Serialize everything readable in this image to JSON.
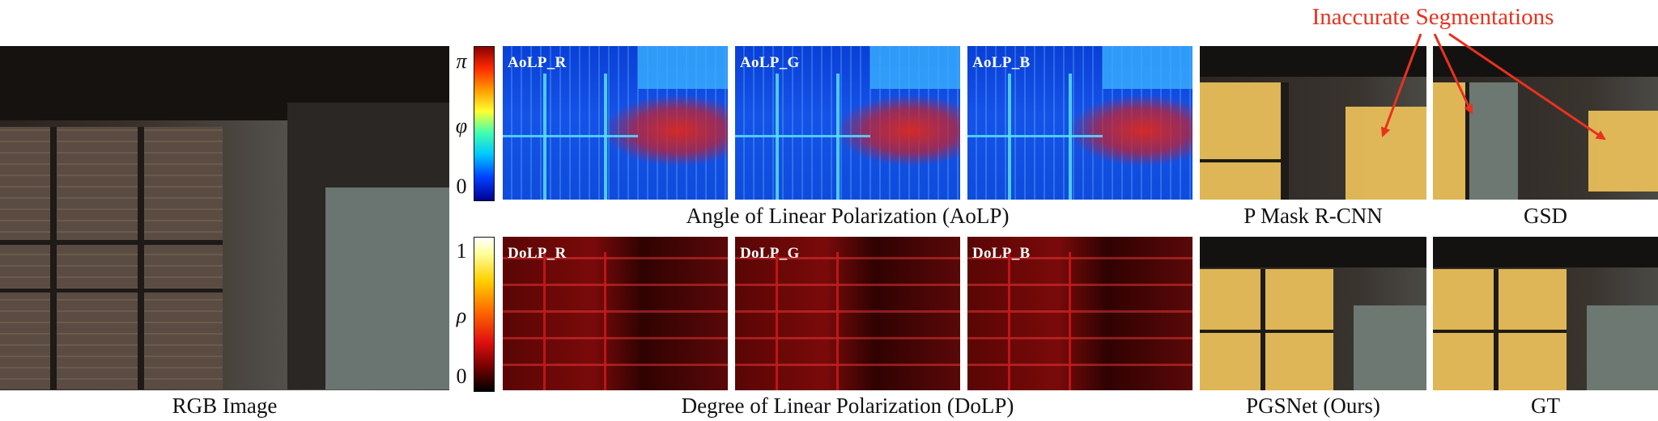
{
  "figure": {
    "annotation": "Inaccurate Segmentations",
    "captions": {
      "rgb": "RGB Image",
      "aolp": "Angle of Linear Polarization (AoLP)",
      "dolp": "Degree of Linear Polarization (DoLP)",
      "pmask": "P Mask R-CNN",
      "gsd": "GSD",
      "pgsnet": "PGSNet (Ours)",
      "gt": "GT"
    },
    "aolp_tags": [
      "AoLP_R",
      "AoLP_G",
      "AoLP_B"
    ],
    "dolp_tags": [
      "DoLP_R",
      "DoLP_G",
      "DoLP_B"
    ],
    "aolp_colorbar": {
      "top": "π",
      "mid": "φ",
      "bottom": "0"
    },
    "dolp_colorbar": {
      "top": "1",
      "mid": "ρ",
      "bottom": "0"
    },
    "colors": {
      "annotation": "#e8321e",
      "segmentation_overlay": "#e8be5a",
      "aolp_base": "#0f4bdc",
      "dolp_base": "#7a0a0a"
    }
  }
}
